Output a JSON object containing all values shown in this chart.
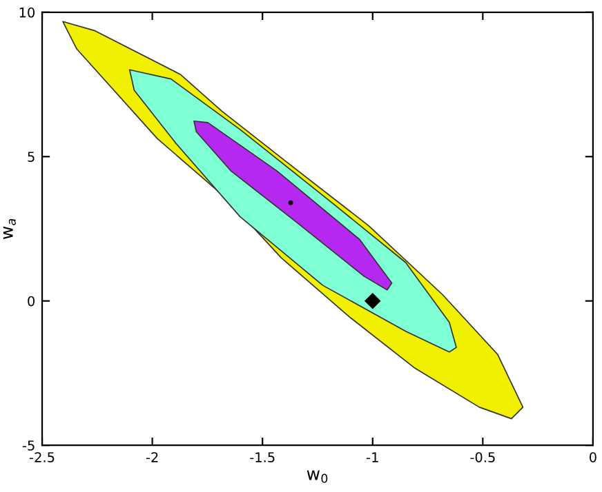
{
  "chart_data": {
    "type": "area",
    "xlabel": "w$_{0}$",
    "ylabel": "w$_{a}$",
    "xlim": [
      -2.5,
      0
    ],
    "ylim": [
      -5,
      10
    ],
    "xticks": [
      -2.5,
      -2,
      -1.5,
      -1,
      -0.5,
      0
    ],
    "yticks": [
      -5,
      0,
      5,
      10
    ],
    "grid": false,
    "legend": false,
    "series": [
      {
        "color": "#f0f000",
        "x": [
          -2.406,
          -2.26,
          -1.873,
          -1.685,
          -1.393,
          -1.017,
          -0.683,
          -0.433,
          -0.318,
          -0.37,
          -0.516,
          -0.808,
          -1.101,
          -1.414,
          -1.665,
          -1.978,
          -2.343
        ],
        "values": [
          9.68,
          9.36,
          7.85,
          6.58,
          4.83,
          2.6,
          0.22,
          -1.85,
          -3.68,
          -4.08,
          -3.68,
          -2.33,
          -0.58,
          1.49,
          3.56,
          5.63,
          8.73
        ]
      },
      {
        "color": "#7fffd4",
        "x": [
          -2.103,
          -1.915,
          -1.602,
          -1.184,
          -0.85,
          -0.652,
          -0.62,
          -0.652,
          -0.85,
          -1.226,
          -1.602,
          -1.894,
          -2.082
        ],
        "values": [
          8.01,
          7.69,
          5.94,
          3.4,
          1.33,
          -0.74,
          -1.61,
          -1.77,
          -1.05,
          0.54,
          2.92,
          5.47,
          7.3
        ]
      },
      {
        "color": "#b428f0",
        "x": [
          -1.811,
          -1.748,
          -1.435,
          -1.059,
          -0.913,
          -0.934,
          -1.038,
          -1.351,
          -1.644,
          -1.8
        ],
        "values": [
          6.23,
          6.18,
          4.51,
          2.13,
          0.62,
          0.38,
          0.85,
          2.76,
          4.51,
          5.86
        ]
      },
      {
        "type": "scatter",
        "color": "#000000",
        "marker": "diamond",
        "x": [
          -1
        ],
        "values": [
          0
        ]
      },
      {
        "type": "scatter",
        "color": "#000000",
        "marker": "circle",
        "x": [
          -1.372
        ],
        "values": [
          3.4
        ]
      }
    ]
  }
}
